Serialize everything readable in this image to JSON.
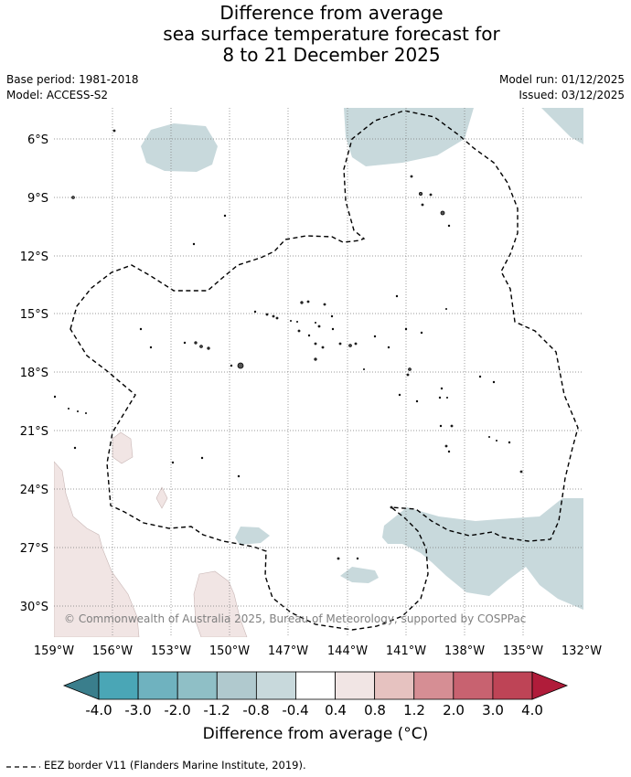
{
  "title": {
    "line1": "Difference from average",
    "line2": "sea surface temperature forecast for",
    "line3": "8 to 21 December 2025"
  },
  "meta": {
    "base_period": "Base period: 1981-2018",
    "model": "Model: ACCESS-S2",
    "model_run": "Model run: 01/12/2025",
    "issued": "Issued: 03/12/2025"
  },
  "map": {
    "lon_range": [
      -159,
      -132
    ],
    "lat_range": [
      -32,
      -4.5
    ],
    "lon_ticks": [
      "159°W",
      "156°W",
      "153°W",
      "150°W",
      "147°W",
      "144°W",
      "141°W",
      "138°W",
      "135°W",
      "132°W"
    ],
    "lat_ticks": [
      "6°S",
      "9°S",
      "12°S",
      "15°S",
      "18°S",
      "21°S",
      "24°S",
      "27°S",
      "30°S"
    ],
    "gridlines": true,
    "copyright": "© Commonwealth of Australia 2025, Bureau of Meteorology, supported by COSPPac",
    "eez_label": "EEZ border V11 (Flanders Marine Institute, 2019)."
  },
  "colorbar": {
    "title": "Difference from average (°C)",
    "tick_labels": [
      "-4.0",
      "-3.0",
      "-2.0",
      "-1.2",
      "-0.8",
      "-0.4",
      "0.4",
      "0.8",
      "1.2",
      "2.0",
      "3.0",
      "4.0"
    ],
    "colors": [
      "#3a7e8c",
      "#4aa6b6",
      "#6fb2bf",
      "#8fbfc6",
      "#b0c9ce",
      "#c8d9dc",
      "#ffffff",
      "#f1e5e4",
      "#e6c2c0",
      "#d68e94",
      "#c86270",
      "#be4456",
      "#b01c3a"
    ]
  }
}
